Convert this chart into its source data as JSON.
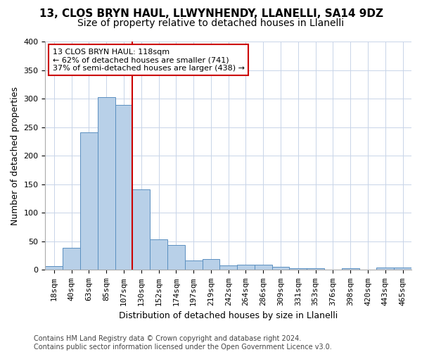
{
  "title1": "13, CLOS BRYN HAUL, LLWYNHENDY, LLANELLI, SA14 9DZ",
  "title2": "Size of property relative to detached houses in Llanelli",
  "xlabel": "Distribution of detached houses by size in Llanelli",
  "ylabel": "Number of detached properties",
  "categories": [
    "18sqm",
    "40sqm",
    "63sqm",
    "85sqm",
    "107sqm",
    "130sqm",
    "152sqm",
    "174sqm",
    "197sqm",
    "219sqm",
    "242sqm",
    "264sqm",
    "286sqm",
    "309sqm",
    "331sqm",
    "353sqm",
    "376sqm",
    "398sqm",
    "420sqm",
    "443sqm",
    "465sqm"
  ],
  "values": [
    7,
    39,
    241,
    303,
    289,
    141,
    54,
    44,
    17,
    19,
    8,
    9,
    9,
    5,
    3,
    3,
    0,
    3,
    1,
    4,
    4
  ],
  "bar_color": "#b8d0e8",
  "bar_edge_color": "#5a8fc0",
  "vline_x": 4.5,
  "vline_color": "#cc0000",
  "annotation_text": "13 CLOS BRYN HAUL: 118sqm\n← 62% of detached houses are smaller (741)\n37% of semi-detached houses are larger (438) →",
  "annotation_box_color": "#ffffff",
  "annotation_box_edge": "#cc0000",
  "ylim": [
    0,
    400
  ],
  "yticks": [
    0,
    50,
    100,
    150,
    200,
    250,
    300,
    350,
    400
  ],
  "footer": "Contains HM Land Registry data © Crown copyright and database right 2024.\nContains public sector information licensed under the Open Government Licence v3.0.",
  "bg_color": "#ffffff",
  "grid_color": "#c8d4e8",
  "title1_fontsize": 11,
  "title2_fontsize": 10,
  "xlabel_fontsize": 9,
  "ylabel_fontsize": 9,
  "tick_fontsize": 8,
  "footer_fontsize": 7
}
